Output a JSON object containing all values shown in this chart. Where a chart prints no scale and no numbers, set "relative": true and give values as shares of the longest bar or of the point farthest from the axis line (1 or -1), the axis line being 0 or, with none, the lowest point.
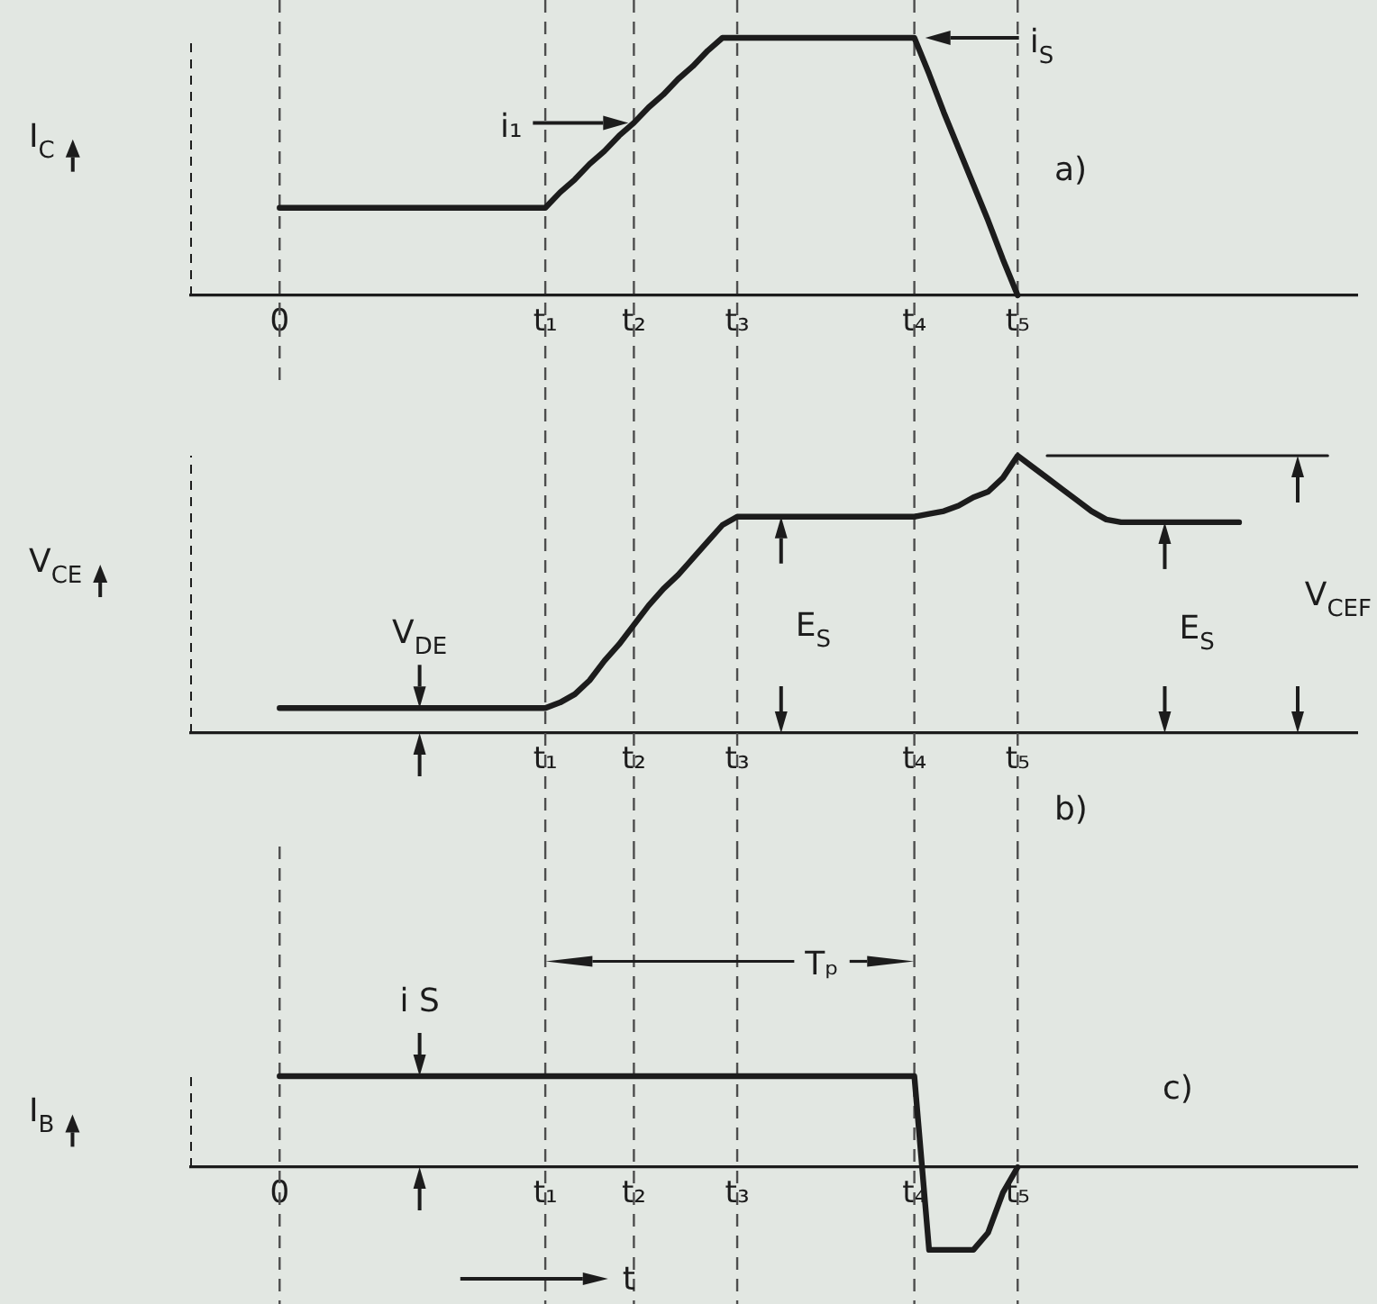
{
  "chart_data": [
    {
      "type": "line",
      "title": "a)",
      "ylabel": "I$_{C}$",
      "relative": true,
      "grid": "x",
      "categories": [
        null,
        null,
        null,
        null,
        null,
        null,
        "0",
        null,
        null,
        null,
        null,
        null,
        null,
        null,
        null,
        null,
        null,
        null,
        null,
        null,
        null,
        null,
        null,
        null,
        "t₁",
        null,
        null,
        null,
        null,
        null,
        "t₂",
        null,
        null,
        null,
        null,
        null,
        null,
        "t₃",
        null,
        null,
        null,
        null,
        null,
        null,
        null,
        null,
        null,
        null,
        null,
        "t₄",
        null,
        null,
        null,
        null,
        null,
        null,
        "t₅",
        null,
        null,
        null,
        null,
        null,
        null,
        null,
        null,
        null,
        null,
        null,
        null,
        null,
        null,
        null,
        null,
        null,
        null,
        null,
        null,
        null,
        null,
        null
      ],
      "series": [
        {
          "color": "#1c1c1c",
          "values": [
            null,
            null,
            null,
            null,
            null,
            null,
            0.34,
            0.34,
            0.34,
            0.34,
            0.34,
            0.34,
            0.34,
            0.34,
            0.34,
            0.34,
            0.34,
            0.34,
            0.34,
            0.34,
            0.34,
            0.34,
            0.34,
            0.34,
            0.34,
            0.4,
            0.45,
            0.51,
            0.56,
            0.62,
            0.67,
            0.73,
            0.78,
            0.84,
            0.89,
            0.95,
            1,
            1,
            1,
            1,
            1,
            1,
            1,
            1,
            1,
            1,
            1,
            1,
            1,
            1,
            0.86,
            0.71,
            0.57,
            0.43,
            0.29,
            0.14,
            0,
            null,
            null,
            null,
            null,
            null,
            null,
            null,
            null,
            null,
            null,
            null,
            null,
            null,
            null,
            null,
            null,
            null,
            null,
            null,
            null,
            null,
            null,
            null
          ]
        }
      ],
      "annotations": [
        "i₁",
        "i$_{S}$"
      ]
    },
    {
      "type": "line",
      "title": "b)",
      "ylabel": "V$_{CE}$",
      "relative": true,
      "grid": "x",
      "categories": [
        null,
        null,
        null,
        null,
        null,
        null,
        null,
        null,
        null,
        null,
        null,
        null,
        null,
        null,
        null,
        null,
        null,
        null,
        null,
        null,
        null,
        null,
        null,
        null,
        "t₁",
        null,
        null,
        null,
        null,
        null,
        "t₂",
        null,
        null,
        null,
        null,
        null,
        null,
        "t₃",
        null,
        null,
        null,
        null,
        null,
        null,
        null,
        null,
        null,
        null,
        null,
        "t₄",
        null,
        null,
        null,
        null,
        null,
        null,
        "t₅",
        null,
        null,
        null,
        null,
        null,
        null,
        null,
        null,
        null,
        null,
        null,
        null,
        null,
        null,
        null,
        null,
        null,
        null,
        null,
        null,
        null,
        null,
        null
      ],
      "series": [
        {
          "color": "#1c1c1c",
          "values": [
            null,
            null,
            null,
            null,
            null,
            null,
            0.09,
            0.09,
            0.09,
            0.09,
            0.09,
            0.09,
            0.09,
            0.09,
            0.09,
            0.09,
            0.09,
            0.09,
            0.09,
            0.09,
            0.09,
            0.09,
            0.09,
            0.09,
            0.09,
            0.11,
            0.14,
            0.19,
            0.26,
            0.32,
            0.39,
            0.46,
            0.52,
            0.57,
            0.63,
            0.69,
            0.75,
            0.78,
            0.78,
            0.78,
            0.78,
            0.78,
            0.78,
            0.78,
            0.78,
            0.78,
            0.78,
            0.78,
            0.78,
            0.78,
            0.79,
            0.8,
            0.82,
            0.85,
            0.87,
            0.92,
            1,
            0.96,
            0.92,
            0.88,
            0.84,
            0.8,
            0.77,
            0.76,
            0.76,
            0.76,
            0.76,
            0.76,
            0.76,
            0.76,
            0.76,
            0.76,
            null,
            null,
            null,
            null,
            null,
            null,
            null,
            null
          ]
        },
        {
          "color": "#1c1c1c",
          "values": [
            null,
            null,
            null,
            null,
            null,
            null,
            null,
            null,
            null,
            null,
            null,
            null,
            null,
            null,
            null,
            null,
            null,
            null,
            null,
            null,
            null,
            null,
            null,
            null,
            null,
            null,
            null,
            null,
            null,
            null,
            null,
            null,
            null,
            null,
            null,
            null,
            null,
            null,
            null,
            null,
            null,
            null,
            null,
            null,
            null,
            null,
            null,
            null,
            null,
            null,
            null,
            null,
            null,
            null,
            null,
            null,
            null,
            null,
            1,
            1,
            1,
            1,
            1,
            1,
            1,
            1,
            1,
            1,
            1,
            1,
            1,
            1,
            1,
            1,
            1,
            1,
            1,
            1,
            null,
            null
          ]
        }
      ],
      "annotations": [
        {
          "text": "V$_{DE}$",
          "y": 0.09
        },
        {
          "text": "E$_{S}$",
          "y": 0.78
        },
        {
          "text": "E$_{S}$",
          "y": 0.76
        },
        "V$_{CEF}$"
      ]
    },
    {
      "type": "line",
      "title": "c)",
      "ylabel": "I$_{B}$",
      "xlabel": "t",
      "relative": true,
      "grid": "x",
      "categories": [
        null,
        null,
        null,
        null,
        null,
        null,
        "0",
        null,
        null,
        null,
        null,
        null,
        null,
        null,
        null,
        null,
        null,
        null,
        null,
        null,
        null,
        null,
        null,
        null,
        "t₁",
        null,
        null,
        null,
        null,
        null,
        "t₂",
        null,
        null,
        null,
        null,
        null,
        null,
        "t₃",
        null,
        null,
        null,
        null,
        null,
        null,
        null,
        null,
        null,
        null,
        null,
        "t₄",
        null,
        null,
        null,
        null,
        null,
        null,
        "t₅",
        null,
        null,
        null,
        null,
        null,
        null,
        null,
        null,
        null,
        null,
        null,
        null,
        null,
        null,
        null,
        null,
        null,
        null,
        null,
        null,
        null,
        null,
        null
      ],
      "series": [
        {
          "color": "#1c1c1c",
          "values": [
            null,
            null,
            null,
            null,
            null,
            null,
            1,
            1,
            1,
            1,
            1,
            1,
            1,
            1,
            1,
            1,
            1,
            1,
            1,
            1,
            1,
            1,
            1,
            1,
            1,
            1,
            1,
            1,
            1,
            1,
            1,
            1,
            1,
            1,
            1,
            1,
            1,
            1,
            1,
            1,
            1,
            1,
            1,
            1,
            1,
            1,
            1,
            1,
            1,
            1,
            -0.91,
            -0.91,
            -0.91,
            -0.91,
            -0.72,
            -0.28,
            0,
            null,
            null,
            null,
            null,
            null,
            null,
            null,
            null,
            null,
            null,
            null,
            null,
            null,
            null,
            null,
            null,
            null,
            null,
            null,
            null,
            null,
            null,
            null
          ]
        }
      ],
      "annotations": [
        {
          "text": "i S",
          "y": 1
        },
        "Tₚ"
      ]
    }
  ]
}
